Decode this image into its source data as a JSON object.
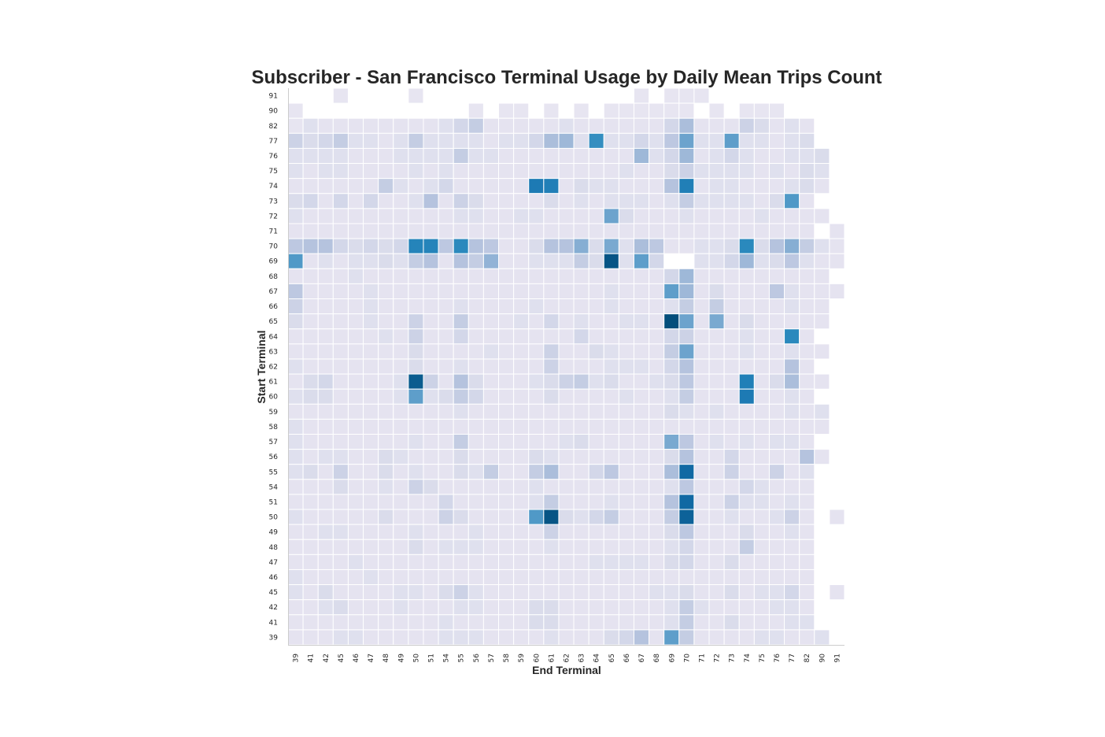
{
  "chart_data": {
    "type": "heatmap",
    "title": "Subscriber - San Francisco Terminal Usage by Daily Mean Trips Count",
    "xlabel": "End Terminal",
    "ylabel": "Start Terminal",
    "x": [
      "39",
      "41",
      "42",
      "45",
      "46",
      "47",
      "48",
      "49",
      "50",
      "51",
      "54",
      "55",
      "56",
      "57",
      "58",
      "59",
      "60",
      "61",
      "62",
      "63",
      "64",
      "65",
      "66",
      "67",
      "68",
      "69",
      "70",
      "71",
      "72",
      "73",
      "74",
      "75",
      "76",
      "77",
      "82",
      "90",
      "91"
    ],
    "y": [
      "91",
      "90",
      "82",
      "77",
      "76",
      "75",
      "74",
      "73",
      "72",
      "71",
      "70",
      "69",
      "68",
      "67",
      "66",
      "65",
      "64",
      "63",
      "62",
      "61",
      "60",
      "59",
      "58",
      "57",
      "56",
      "55",
      "54",
      "51",
      "50",
      "49",
      "48",
      "47",
      "46",
      "45",
      "42",
      "41",
      "39"
    ],
    "colormap": [
      "#f5eff7",
      "#d9dbeb",
      "#b3c1dd",
      "#73a6cf",
      "#2b8bbe",
      "#1571af",
      "#034e7b"
    ],
    "grid": false,
    "z": [
      [
        null,
        null,
        null,
        0.5,
        null,
        null,
        null,
        null,
        0.5,
        null,
        null,
        null,
        null,
        null,
        null,
        null,
        null,
        null,
        null,
        null,
        null,
        null,
        null,
        0.5,
        null,
        0.5,
        0.5,
        0.5,
        null,
        null,
        null,
        null,
        null,
        null,
        null,
        null,
        null
      ],
      [
        0.5,
        null,
        null,
        null,
        null,
        null,
        null,
        null,
        null,
        null,
        null,
        null,
        0.5,
        null,
        0.5,
        0.5,
        null,
        0.5,
        null,
        0.5,
        null,
        0.5,
        0.5,
        0.5,
        0.5,
        0.5,
        0.5,
        null,
        0.5,
        null,
        0.5,
        0.5,
        0.5,
        null,
        null,
        null,
        null
      ],
      [
        0.5,
        0.8,
        0.6,
        0.6,
        0.6,
        0.6,
        0.6,
        0.6,
        0.6,
        0.6,
        0.8,
        1.2,
        1.6,
        0.6,
        0.6,
        0.6,
        0.6,
        0.6,
        0.8,
        0.6,
        0.6,
        0.6,
        0.6,
        0.6,
        0.6,
        1.2,
        2.2,
        0.6,
        0.6,
        0.6,
        1.4,
        1.0,
        0.6,
        0.8,
        0.6,
        null,
        null
      ],
      [
        1.4,
        1.0,
        1.2,
        1.6,
        0.8,
        0.8,
        0.6,
        0.8,
        1.6,
        0.8,
        0.8,
        0.8,
        0.8,
        0.6,
        0.8,
        0.8,
        1.2,
        2.2,
        2.4,
        0.8,
        4.0,
        0.8,
        0.8,
        1.2,
        0.8,
        1.8,
        3.2,
        0.8,
        0.8,
        3.4,
        0.8,
        0.8,
        0.6,
        0.8,
        1.0,
        null,
        null
      ],
      [
        0.8,
        0.8,
        0.8,
        0.8,
        0.6,
        0.6,
        0.6,
        0.8,
        0.8,
        0.8,
        0.8,
        1.6,
        0.8,
        0.8,
        0.6,
        0.6,
        0.6,
        0.6,
        0.6,
        0.6,
        0.6,
        0.6,
        0.6,
        2.4,
        0.8,
        1.2,
        2.4,
        0.6,
        0.8,
        1.2,
        0.8,
        0.6,
        0.6,
        0.8,
        0.8,
        1.0,
        null
      ],
      [
        0.8,
        0.6,
        0.8,
        0.8,
        0.6,
        0.6,
        0.6,
        0.6,
        0.8,
        0.6,
        0.8,
        0.6,
        0.6,
        0.6,
        0.6,
        0.6,
        0.6,
        0.6,
        0.6,
        0.6,
        0.6,
        0.6,
        0.8,
        0.6,
        0.6,
        1.0,
        1.4,
        0.8,
        0.8,
        0.8,
        0.8,
        0.6,
        0.8,
        0.6,
        1.0,
        0.8,
        null
      ],
      [
        0.6,
        0.6,
        0.6,
        0.6,
        0.6,
        0.6,
        1.6,
        0.8,
        0.6,
        0.8,
        1.2,
        0.6,
        0.6,
        0.6,
        0.6,
        0.6,
        4.8,
        4.6,
        0.6,
        1.0,
        0.8,
        0.8,
        0.6,
        0.6,
        0.6,
        2.0,
        4.6,
        0.6,
        0.8,
        0.8,
        0.6,
        0.6,
        0.6,
        0.8,
        1.0,
        0.6,
        null
      ],
      [
        1.0,
        1.2,
        0.6,
        1.2,
        0.6,
        1.2,
        0.6,
        0.6,
        0.8,
        2.0,
        0.6,
        1.4,
        1.0,
        0.6,
        0.6,
        0.6,
        0.6,
        1.0,
        0.6,
        0.8,
        0.6,
        0.8,
        0.8,
        0.8,
        0.6,
        0.8,
        1.6,
        0.8,
        0.8,
        0.8,
        0.8,
        0.6,
        1.0,
        3.6,
        0.6,
        null,
        null
      ],
      [
        0.8,
        0.6,
        0.6,
        0.6,
        0.6,
        0.6,
        0.6,
        0.6,
        0.6,
        0.6,
        0.6,
        0.8,
        0.8,
        0.6,
        0.6,
        0.8,
        0.8,
        0.6,
        0.6,
        0.6,
        0.6,
        3.2,
        1.0,
        0.6,
        0.6,
        0.6,
        0.8,
        0.6,
        0.6,
        0.6,
        0.6,
        0.8,
        0.6,
        0.6,
        0.6,
        0.6,
        null
      ],
      [
        0.6,
        0.6,
        0.6,
        0.6,
        0.6,
        0.6,
        0.6,
        0.6,
        0.6,
        0.6,
        0.6,
        0.6,
        0.6,
        0.6,
        0.6,
        0.6,
        0.6,
        0.6,
        0.6,
        0.6,
        0.6,
        0.6,
        0.6,
        0.6,
        0.6,
        0.6,
        0.6,
        0.6,
        0.6,
        0.6,
        0.6,
        0.6,
        0.6,
        0.6,
        0.6,
        null,
        0.6
      ],
      [
        1.8,
        2.0,
        2.0,
        1.2,
        1.0,
        1.2,
        1.0,
        1.2,
        4.4,
        4.4,
        1.8,
        4.2,
        2.0,
        1.8,
        0.6,
        0.6,
        1.0,
        2.0,
        2.0,
        2.8,
        1.0,
        3.0,
        0.8,
        2.2,
        1.8,
        0.6,
        0.6,
        0.8,
        0.8,
        1.0,
        4.2,
        1.0,
        2.0,
        2.8,
        1.6,
        0.8,
        0.6
      ],
      [
        3.6,
        0.6,
        0.8,
        0.6,
        0.8,
        0.8,
        1.0,
        0.8,
        1.6,
        2.0,
        0.6,
        2.0,
        1.6,
        2.6,
        0.6,
        0.6,
        0.8,
        0.8,
        0.8,
        1.6,
        1.0,
        6.0,
        0.8,
        3.4,
        1.2,
        null,
        null,
        0.8,
        0.8,
        1.2,
        2.4,
        0.8,
        1.0,
        1.8,
        0.8,
        0.6,
        0.6
      ],
      [
        0.6,
        0.6,
        0.6,
        0.6,
        0.8,
        0.6,
        0.6,
        0.6,
        0.6,
        0.6,
        0.6,
        0.6,
        0.6,
        0.6,
        0.6,
        0.6,
        0.6,
        0.6,
        0.6,
        0.6,
        0.6,
        0.6,
        0.6,
        0.6,
        0.6,
        1.2,
        2.4,
        0.6,
        0.6,
        0.6,
        0.6,
        0.6,
        0.6,
        0.6,
        0.6,
        0.6,
        null
      ],
      [
        1.8,
        0.6,
        0.6,
        0.6,
        0.6,
        0.8,
        0.6,
        0.6,
        0.6,
        0.6,
        0.6,
        0.6,
        0.6,
        0.6,
        0.6,
        0.6,
        0.6,
        0.6,
        0.6,
        0.6,
        0.6,
        0.8,
        0.6,
        0.6,
        0.6,
        3.4,
        2.4,
        0.6,
        1.0,
        0.6,
        0.6,
        0.6,
        1.8,
        0.8,
        0.6,
        0.6,
        0.6
      ],
      [
        1.4,
        0.6,
        0.6,
        0.6,
        0.6,
        0.8,
        0.6,
        0.6,
        0.6,
        0.6,
        0.6,
        0.8,
        0.6,
        0.6,
        0.6,
        0.6,
        0.8,
        0.6,
        0.6,
        0.6,
        0.6,
        0.8,
        0.6,
        0.6,
        0.6,
        0.8,
        1.6,
        0.6,
        1.6,
        0.6,
        0.6,
        0.6,
        0.6,
        0.8,
        0.6,
        0.6,
        null
      ],
      [
        1.0,
        0.6,
        0.6,
        0.6,
        0.6,
        0.8,
        0.6,
        0.6,
        1.4,
        0.6,
        0.6,
        1.6,
        0.6,
        0.6,
        0.6,
        0.8,
        0.6,
        1.2,
        0.6,
        0.8,
        0.6,
        0.6,
        0.8,
        0.8,
        0.6,
        6.2,
        3.2,
        0.6,
        3.0,
        0.6,
        1.0,
        0.6,
        0.6,
        0.6,
        0.6,
        0.6,
        null
      ],
      [
        0.6,
        0.6,
        0.6,
        0.6,
        0.6,
        0.6,
        0.8,
        0.6,
        1.4,
        0.6,
        0.6,
        1.2,
        0.6,
        0.6,
        0.6,
        0.6,
        0.6,
        0.6,
        0.6,
        1.2,
        0.6,
        0.6,
        0.6,
        0.6,
        0.6,
        1.2,
        1.4,
        0.6,
        0.6,
        0.6,
        0.8,
        0.6,
        0.6,
        4.2,
        0.6,
        null,
        null
      ],
      [
        0.6,
        0.6,
        0.6,
        0.6,
        0.6,
        0.6,
        0.6,
        0.6,
        1.0,
        0.6,
        0.6,
        0.6,
        0.6,
        0.8,
        0.6,
        0.6,
        0.6,
        1.4,
        0.6,
        0.6,
        1.0,
        0.8,
        0.6,
        0.6,
        0.6,
        1.6,
        3.2,
        0.6,
        0.6,
        0.6,
        0.8,
        0.6,
        0.6,
        0.8,
        0.6,
        0.6,
        null
      ],
      [
        0.8,
        0.6,
        0.6,
        0.6,
        0.6,
        0.6,
        0.6,
        0.6,
        1.0,
        0.6,
        0.6,
        0.8,
        0.6,
        0.6,
        0.6,
        0.6,
        0.6,
        1.4,
        0.6,
        0.6,
        0.6,
        0.8,
        0.8,
        0.8,
        0.6,
        1.2,
        2.0,
        0.6,
        0.6,
        0.6,
        0.6,
        0.6,
        0.6,
        2.0,
        0.6,
        null,
        null
      ],
      [
        0.6,
        1.0,
        1.2,
        0.6,
        0.6,
        0.6,
        0.6,
        0.8,
        5.8,
        1.4,
        0.6,
        2.0,
        1.0,
        0.6,
        0.6,
        0.6,
        0.8,
        1.0,
        1.4,
        1.6,
        0.8,
        1.0,
        0.6,
        0.6,
        0.8,
        1.0,
        1.8,
        0.6,
        0.6,
        0.6,
        4.6,
        0.6,
        1.0,
        2.2,
        0.6,
        0.6,
        null
      ],
      [
        0.8,
        1.0,
        1.0,
        0.6,
        0.6,
        0.6,
        0.6,
        0.8,
        3.4,
        0.8,
        1.0,
        1.6,
        1.2,
        0.6,
        0.6,
        0.6,
        0.6,
        1.0,
        0.6,
        0.6,
        0.6,
        0.6,
        0.8,
        0.6,
        0.6,
        0.8,
        1.6,
        0.6,
        0.6,
        0.6,
        4.8,
        0.6,
        0.6,
        0.8,
        0.6,
        null,
        null
      ],
      [
        0.6,
        0.6,
        0.6,
        0.6,
        0.6,
        0.6,
        0.6,
        0.6,
        0.6,
        0.6,
        0.6,
        0.8,
        0.6,
        0.6,
        0.6,
        0.6,
        0.6,
        0.6,
        0.6,
        0.6,
        0.6,
        0.6,
        0.6,
        0.6,
        0.6,
        1.0,
        0.8,
        0.6,
        0.8,
        0.6,
        0.6,
        0.6,
        0.6,
        0.8,
        0.6,
        0.8,
        null
      ],
      [
        0.8,
        0.6,
        0.6,
        0.6,
        0.6,
        0.6,
        0.6,
        0.6,
        0.6,
        0.6,
        0.6,
        0.6,
        0.6,
        0.6,
        0.6,
        0.6,
        0.6,
        0.6,
        0.6,
        0.6,
        0.6,
        0.6,
        0.6,
        0.6,
        0.6,
        0.6,
        0.6,
        0.6,
        0.6,
        0.6,
        0.6,
        0.6,
        0.6,
        0.6,
        0.6,
        0.6,
        null
      ],
      [
        0.8,
        0.6,
        0.6,
        0.6,
        0.6,
        0.6,
        0.6,
        0.6,
        0.8,
        0.6,
        0.6,
        1.6,
        0.6,
        0.6,
        0.6,
        0.6,
        0.6,
        0.6,
        0.8,
        1.0,
        0.6,
        0.6,
        0.6,
        0.6,
        0.6,
        3.0,
        1.8,
        0.6,
        0.8,
        0.6,
        0.8,
        0.6,
        0.8,
        0.8,
        0.6,
        null,
        null
      ],
      [
        0.8,
        0.6,
        0.8,
        0.8,
        0.6,
        0.6,
        1.0,
        0.8,
        0.6,
        0.6,
        0.6,
        1.0,
        0.6,
        0.6,
        0.6,
        0.6,
        1.0,
        0.8,
        0.6,
        0.6,
        0.6,
        0.6,
        0.6,
        0.6,
        0.6,
        1.0,
        2.0,
        0.6,
        0.6,
        1.2,
        0.6,
        0.6,
        0.6,
        0.6,
        2.0,
        0.6,
        null
      ],
      [
        0.8,
        1.0,
        0.6,
        1.4,
        0.6,
        0.6,
        1.0,
        0.6,
        0.8,
        0.6,
        0.6,
        1.0,
        0.8,
        1.6,
        0.6,
        0.6,
        1.6,
        2.2,
        0.6,
        0.6,
        1.2,
        1.8,
        0.6,
        0.6,
        0.6,
        2.2,
        5.4,
        0.6,
        0.6,
        1.4,
        0.6,
        0.6,
        1.4,
        0.6,
        0.8,
        null,
        null
      ],
      [
        0.6,
        0.6,
        0.6,
        1.0,
        0.6,
        0.6,
        0.8,
        0.6,
        1.4,
        1.0,
        0.6,
        0.6,
        0.6,
        0.6,
        0.6,
        0.6,
        0.8,
        0.6,
        0.6,
        0.6,
        0.6,
        0.6,
        0.6,
        0.6,
        0.6,
        0.8,
        1.8,
        0.6,
        0.6,
        0.6,
        1.2,
        0.8,
        0.6,
        0.6,
        0.6,
        null,
        null
      ],
      [
        0.6,
        0.6,
        0.6,
        0.6,
        0.6,
        0.6,
        0.6,
        0.6,
        0.6,
        0.6,
        1.2,
        0.6,
        0.6,
        0.6,
        0.6,
        0.6,
        0.8,
        1.6,
        0.6,
        0.6,
        0.6,
        0.8,
        0.6,
        0.6,
        0.6,
        2.0,
        5.4,
        0.6,
        0.6,
        1.4,
        0.8,
        0.8,
        0.6,
        0.8,
        0.6,
        null,
        null
      ],
      [
        0.8,
        0.6,
        0.6,
        0.6,
        0.6,
        0.6,
        1.0,
        0.6,
        0.6,
        0.6,
        1.4,
        1.0,
        0.6,
        0.6,
        0.6,
        0.6,
        3.6,
        6.0,
        1.0,
        0.8,
        1.2,
        1.6,
        0.6,
        0.6,
        0.6,
        1.6,
        5.6,
        0.6,
        0.6,
        0.8,
        0.6,
        0.6,
        0.8,
        1.4,
        0.6,
        null,
        0.6
      ],
      [
        0.6,
        0.6,
        0.8,
        0.8,
        0.6,
        0.6,
        0.6,
        0.6,
        0.8,
        0.6,
        0.6,
        0.6,
        0.8,
        0.6,
        0.6,
        0.6,
        0.6,
        1.4,
        0.6,
        0.6,
        0.6,
        0.6,
        0.6,
        0.6,
        0.6,
        1.0,
        1.8,
        0.6,
        0.6,
        0.6,
        1.0,
        0.6,
        0.6,
        0.8,
        0.6,
        null,
        null
      ],
      [
        0.6,
        0.6,
        0.6,
        0.6,
        0.6,
        0.6,
        0.6,
        0.6,
        1.0,
        0.6,
        0.8,
        0.8,
        0.8,
        0.6,
        0.6,
        0.6,
        0.6,
        0.8,
        0.6,
        0.6,
        0.6,
        0.6,
        0.6,
        0.6,
        0.6,
        0.8,
        1.2,
        0.6,
        0.6,
        0.6,
        1.6,
        0.6,
        0.6,
        0.6,
        0.6,
        null,
        null
      ],
      [
        0.6,
        0.6,
        0.6,
        0.6,
        0.8,
        0.6,
        0.6,
        0.6,
        0.6,
        0.6,
        0.6,
        0.6,
        0.6,
        0.6,
        0.6,
        0.6,
        0.6,
        0.6,
        0.6,
        0.6,
        0.8,
        0.8,
        0.8,
        0.8,
        0.6,
        1.0,
        1.2,
        0.6,
        0.6,
        1.0,
        0.6,
        0.6,
        0.6,
        0.6,
        0.6,
        null,
        null
      ],
      [
        0.8,
        0.6,
        0.6,
        0.6,
        0.6,
        0.8,
        0.6,
        0.6,
        0.6,
        0.6,
        0.6,
        0.6,
        0.6,
        0.6,
        0.6,
        0.6,
        0.6,
        0.6,
        0.6,
        0.6,
        0.6,
        0.6,
        0.6,
        0.6,
        0.6,
        0.6,
        0.6,
        0.6,
        0.6,
        0.6,
        0.6,
        0.6,
        0.6,
        0.6,
        0.6,
        null,
        null
      ],
      [
        0.8,
        0.6,
        1.0,
        0.6,
        0.6,
        0.6,
        0.6,
        0.8,
        0.8,
        0.6,
        1.0,
        1.4,
        0.8,
        0.6,
        0.6,
        0.6,
        0.6,
        0.6,
        0.6,
        0.6,
        0.6,
        0.6,
        0.6,
        0.6,
        0.8,
        0.8,
        1.0,
        0.6,
        0.6,
        1.0,
        0.6,
        0.8,
        0.8,
        1.2,
        0.6,
        null,
        0.6
      ],
      [
        0.6,
        0.6,
        0.8,
        1.0,
        0.6,
        0.6,
        0.6,
        0.8,
        0.6,
        0.6,
        0.6,
        0.8,
        0.8,
        0.6,
        0.6,
        0.6,
        1.0,
        1.0,
        0.6,
        0.6,
        0.6,
        0.6,
        0.6,
        0.6,
        0.6,
        0.8,
        1.6,
        0.8,
        0.6,
        0.6,
        0.6,
        0.6,
        0.8,
        0.8,
        0.6,
        null,
        null
      ],
      [
        0.6,
        0.6,
        0.6,
        0.6,
        0.6,
        0.6,
        0.6,
        0.6,
        0.6,
        0.6,
        0.8,
        0.6,
        0.6,
        0.6,
        0.6,
        0.6,
        1.0,
        1.0,
        0.6,
        0.6,
        0.6,
        0.6,
        0.6,
        0.6,
        0.6,
        0.8,
        1.6,
        0.6,
        0.6,
        1.0,
        0.6,
        0.6,
        0.6,
        0.8,
        0.8,
        null,
        null
      ],
      [
        0.6,
        0.6,
        0.6,
        0.8,
        0.8,
        0.6,
        0.6,
        0.6,
        0.6,
        0.6,
        0.8,
        0.8,
        0.8,
        0.6,
        0.6,
        0.6,
        0.6,
        0.8,
        0.6,
        0.6,
        0.6,
        1.0,
        1.2,
        2.0,
        0.6,
        3.4,
        1.6,
        0.6,
        0.6,
        0.6,
        0.6,
        0.8,
        0.8,
        0.6,
        0.6,
        0.8,
        null
      ]
    ]
  }
}
